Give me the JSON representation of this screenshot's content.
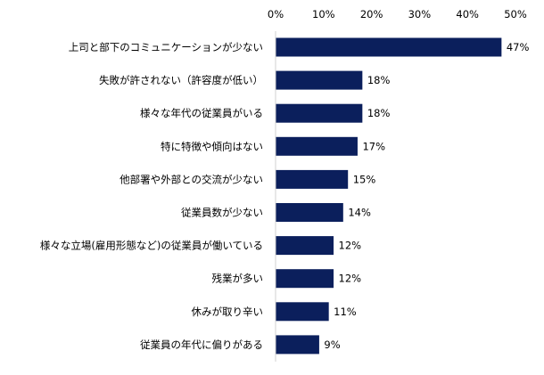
{
  "chart_data": {
    "type": "bar",
    "orientation": "horizontal",
    "title": "",
    "xlabel": "",
    "ylabel": "",
    "xlim": [
      0,
      50
    ],
    "ticks": [
      0,
      10,
      20,
      30,
      40,
      50
    ],
    "tick_labels": [
      "0%",
      "10%",
      "20%",
      "30%",
      "40%",
      "50%"
    ],
    "tick_position": "top",
    "grid": false,
    "categories": [
      "上司と部下のコミュニケーションが少ない",
      "失敗が許されない（許容度が低い）",
      "様々な年代の従業員がいる",
      "特に特徴や傾向はない",
      "他部署や外部との交流が少ない",
      "従業員数が少ない",
      "様々な立場(雇用形態など)の従業員が働いている",
      "残業が多い",
      "休みが取り辛い",
      "従業員の年代に偏りがある"
    ],
    "values": [
      47,
      18,
      18,
      17,
      15,
      14,
      12,
      12,
      11,
      9
    ],
    "value_labels": [
      "47%",
      "18%",
      "18%",
      "17%",
      "15%",
      "14%",
      "12%",
      "12%",
      "11%",
      "9%"
    ],
    "bar_color": "#0b1f5c",
    "axis_color": "#d0d0d0"
  }
}
